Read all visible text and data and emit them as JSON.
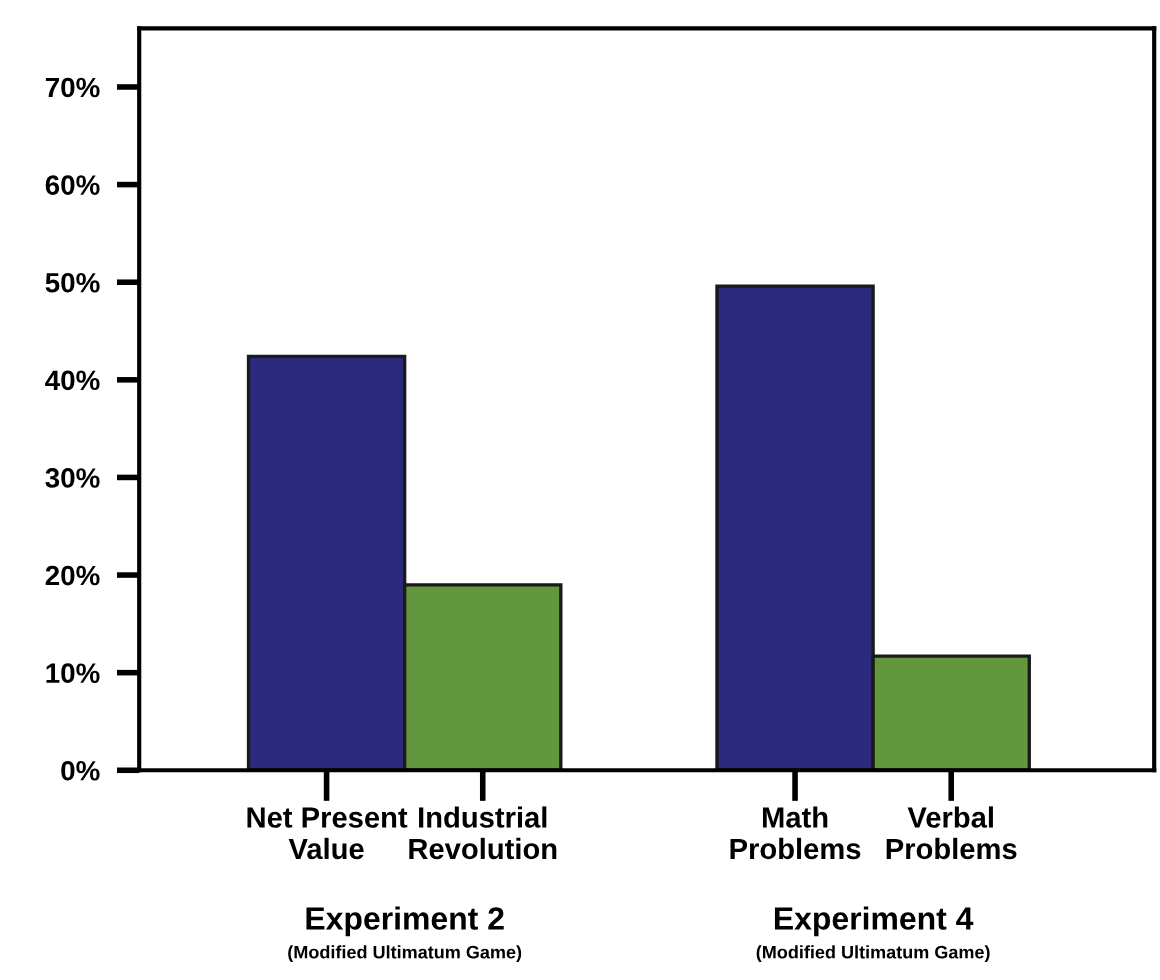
{
  "chart_data": {
    "type": "bar",
    "categories": [
      "Net Present\nValue",
      "Industrial\nRevolution",
      null,
      "Math\nProblems",
      "Verbal\nProblems"
    ],
    "values": [
      42.4,
      19.0,
      null,
      49.6,
      11.7
    ],
    "colors": [
      "#2b2a7c",
      "#62973d",
      "#ffffff",
      "#2b2a7c",
      "#62973d"
    ],
    "ylim": [
      0,
      76
    ],
    "yticks": [
      {
        "value": 0,
        "label": "0%"
      },
      {
        "value": 10,
        "label": "10%"
      },
      {
        "value": 20,
        "label": "20%"
      },
      {
        "value": 30,
        "label": "30%"
      },
      {
        "value": 40,
        "label": "40%"
      },
      {
        "value": 50,
        "label": "50%"
      },
      {
        "value": 60,
        "label": "60%"
      },
      {
        "value": 70,
        "label": "70%"
      }
    ],
    "annotations": [
      "Experiment 2\n(Modified Ultimatum Game)",
      "Experiment 4\n(Modified Ultimatum Game)"
    ],
    "grid": false,
    "legend": false
  }
}
